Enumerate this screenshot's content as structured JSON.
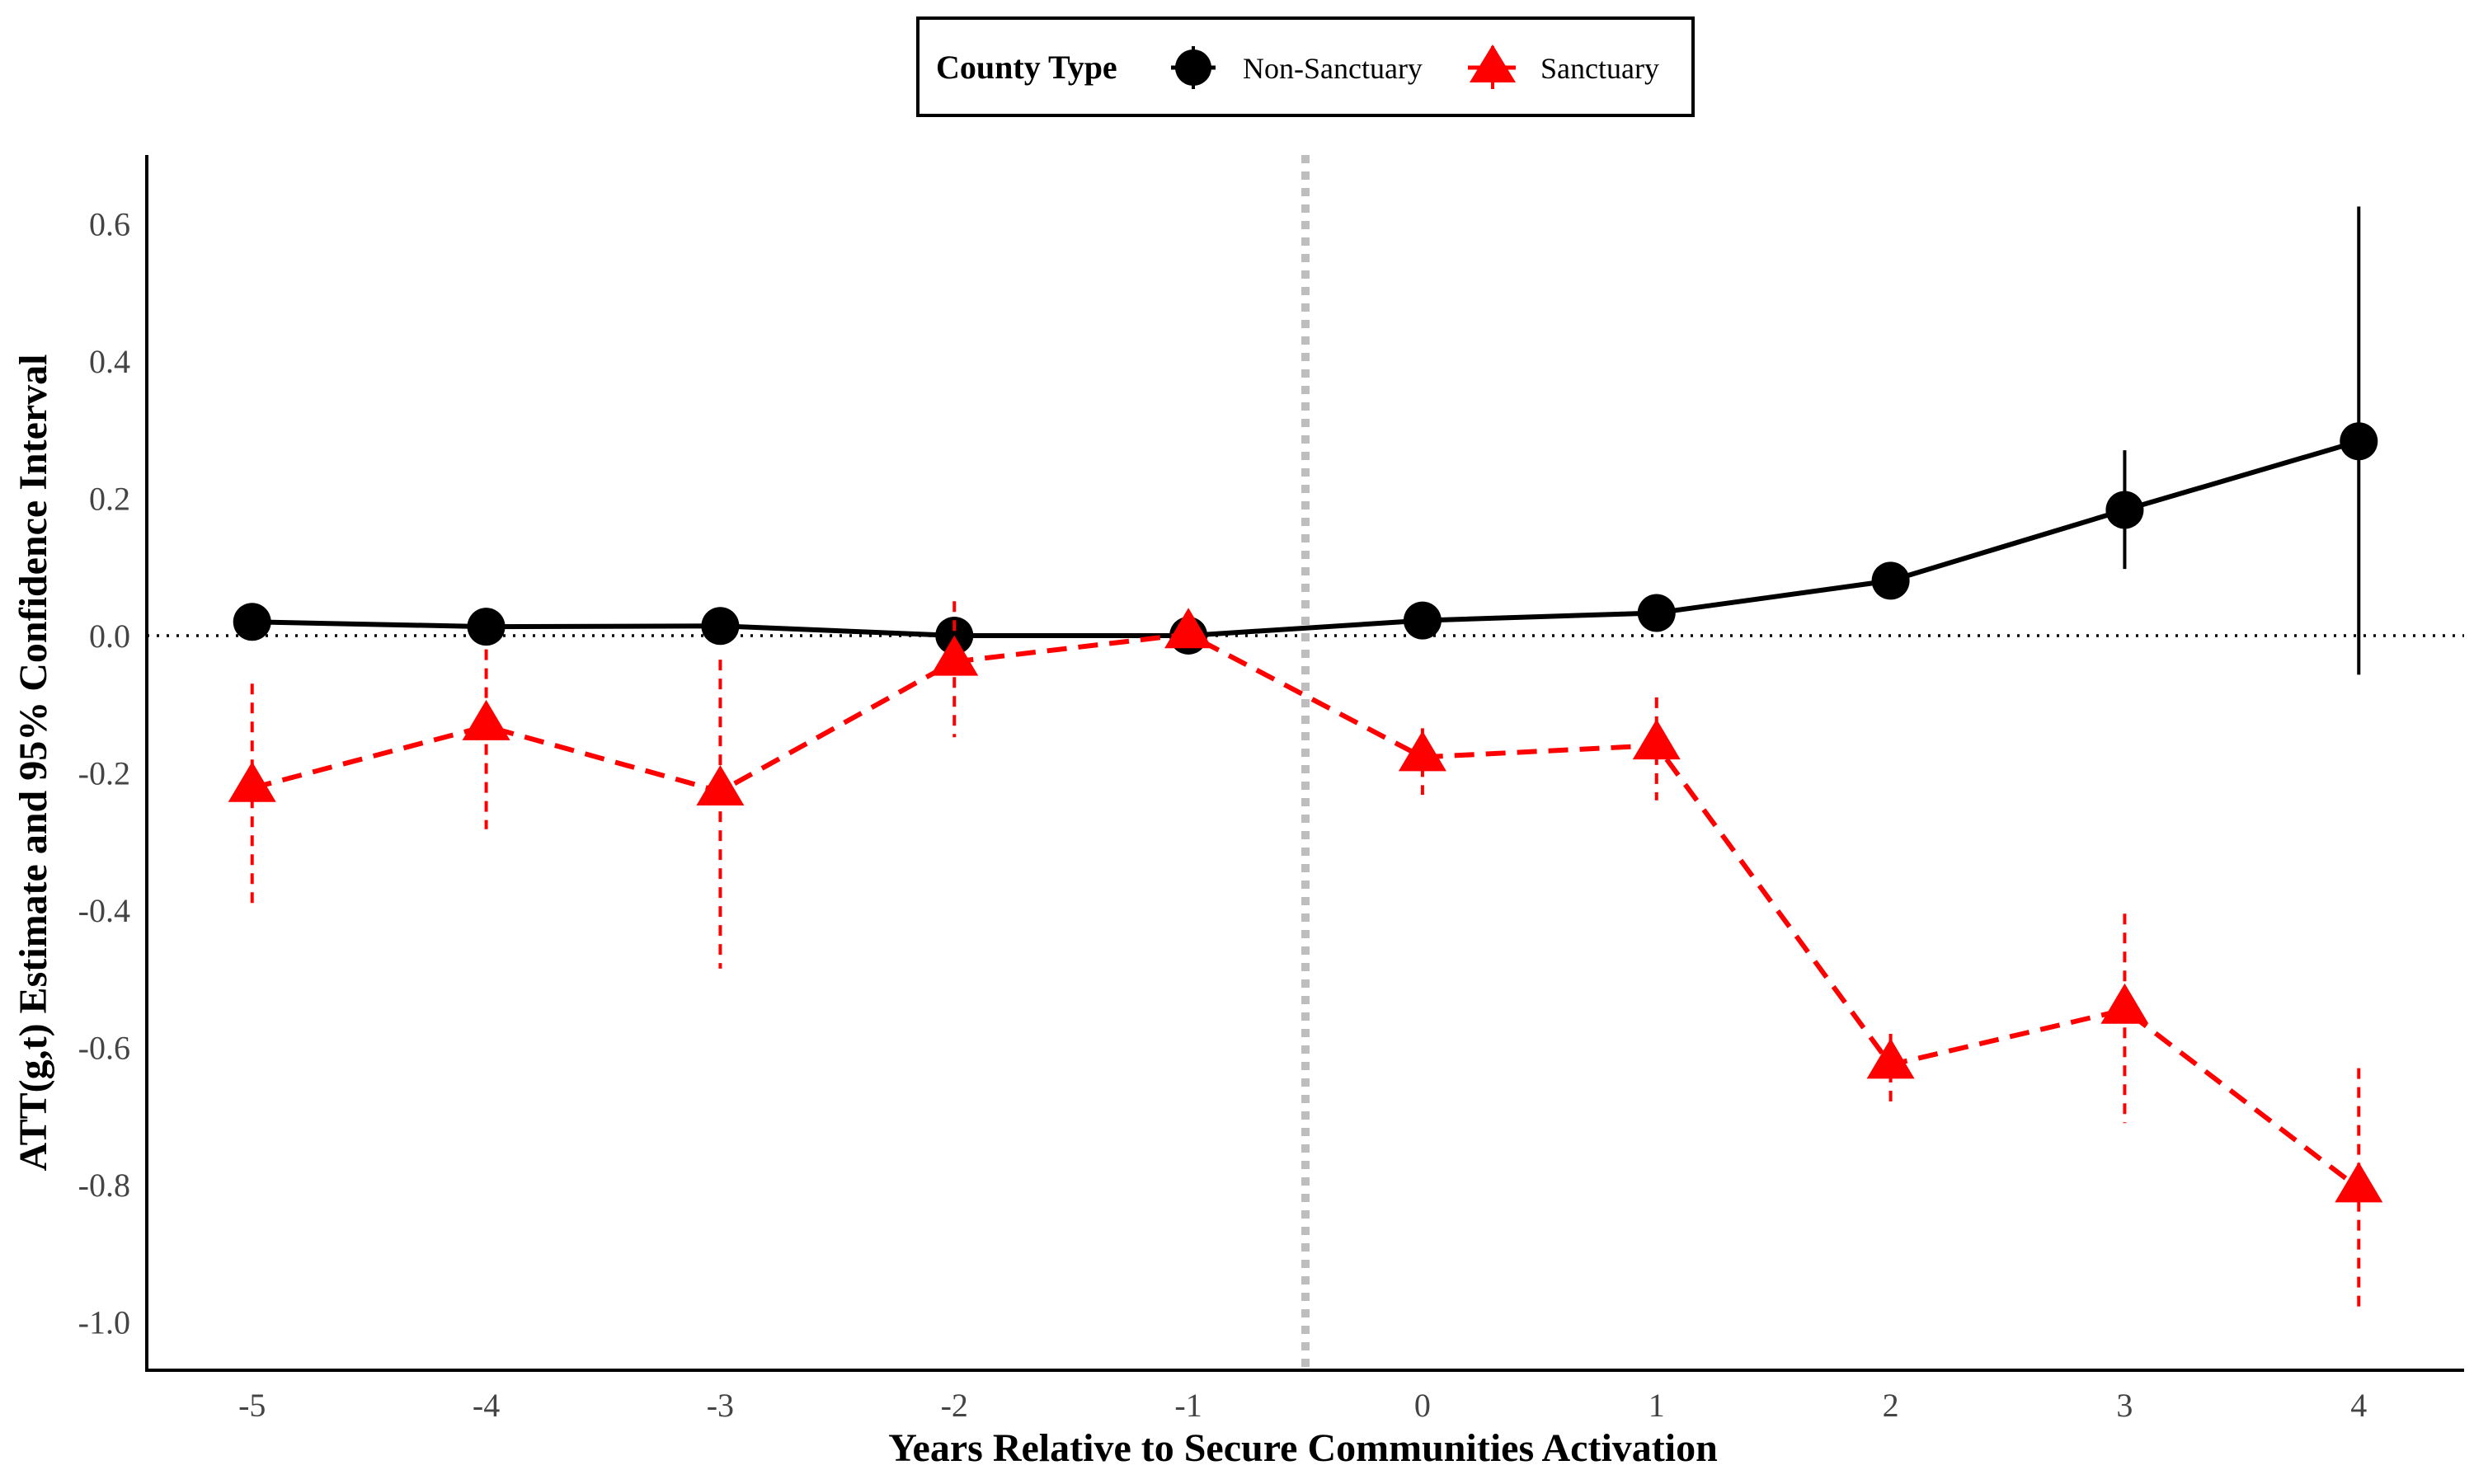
{
  "chart_data": {
    "type": "line",
    "title": "",
    "xlabel": "Years Relative to Secure Communities Activation",
    "ylabel": "ATT(g,t) Estimate and 95% Confidence Interval",
    "x": [
      -5,
      -4,
      -3,
      -2,
      -1,
      0,
      1,
      2,
      3,
      4
    ],
    "xlim": [
      -5.45,
      4.45
    ],
    "ylim": [
      -1.07,
      0.7
    ],
    "y_ticks": [
      0.6,
      0.4,
      0.2,
      0.0,
      -0.2,
      -0.4,
      -0.6,
      -0.8,
      -1.0
    ],
    "y_tick_labels": [
      "0.6",
      "0.4",
      "0.2",
      "0.0",
      "-0.2",
      "-0.4",
      "-0.6",
      "-0.8",
      "-1.0"
    ],
    "x_tick_labels": [
      "-5",
      "-4",
      "-3",
      "-2",
      "-1",
      "0",
      "1",
      "2",
      "3",
      "4"
    ],
    "reference_lines": {
      "hline_y": 0.0,
      "vline_x": -0.5
    },
    "grid": false,
    "legend": {
      "title": "County Type",
      "placement": "top-center",
      "labels": [
        "Non-Sanctuary",
        "Sanctuary"
      ]
    },
    "series": [
      {
        "name": "Non-Sanctuary",
        "color": "#000000",
        "marker": "circle",
        "line_style": "solid",
        "values": [
          0.02,
          0.013,
          0.014,
          0.0,
          0.0,
          0.022,
          0.033,
          0.08,
          0.183,
          0.283
        ],
        "ci_lower": [
          null,
          null,
          null,
          null,
          null,
          null,
          null,
          null,
          0.097,
          -0.057
        ],
        "ci_upper": [
          null,
          null,
          null,
          null,
          null,
          null,
          null,
          null,
          0.27,
          0.625
        ]
      },
      {
        "name": "Sanctuary",
        "color": "#ff0000",
        "marker": "triangle",
        "line_style": "dashed",
        "values": [
          -0.222,
          -0.132,
          -0.227,
          -0.038,
          0.002,
          -0.177,
          -0.16,
          -0.625,
          -0.545,
          -0.805
        ],
        "ci_lower": [
          -0.398,
          -0.282,
          -0.485,
          -0.148,
          -0.01,
          -0.232,
          -0.24,
          -0.69,
          -0.71,
          -0.98
        ],
        "ci_upper": [
          -0.07,
          -0.02,
          -0.035,
          0.05,
          0.015,
          -0.135,
          -0.09,
          -0.58,
          -0.405,
          -0.63
        ]
      }
    ]
  }
}
